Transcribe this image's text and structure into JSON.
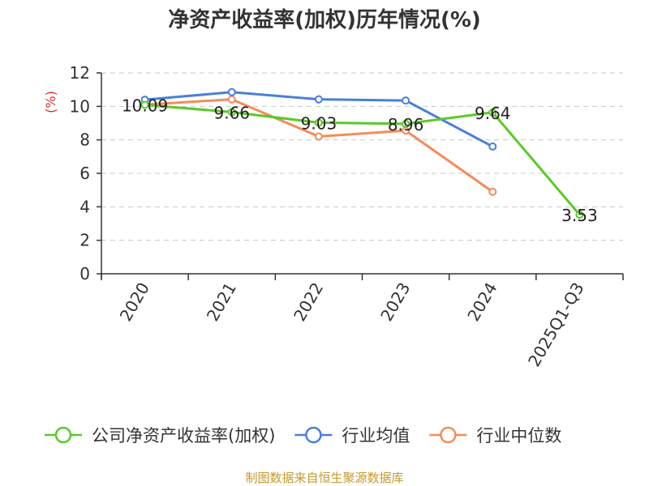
{
  "chart_data": {
    "type": "line",
    "title": "净资产收益率(加权)历年情况(%)",
    "ylabel": "(%)",
    "xlabel": "",
    "ylim": [
      0,
      12
    ],
    "yticks": [
      0,
      2,
      4,
      6,
      8,
      10,
      12
    ],
    "grid": true,
    "legend_position": "bottom",
    "categories": [
      "2020",
      "2021",
      "2022",
      "2023",
      "2024",
      "2025Q1-Q3"
    ],
    "series": [
      {
        "name": "公司净资产收益率(加权)",
        "color": "#5cc82a",
        "values": [
          10.09,
          9.66,
          9.03,
          8.96,
          9.64,
          3.53
        ],
        "labels": [
          "10.09",
          "9.66",
          "9.03",
          "8.96",
          "9.64",
          "3.53"
        ]
      },
      {
        "name": "行业均值",
        "color": "#4a7fd9",
        "values": [
          10.4,
          10.85,
          10.42,
          10.35,
          7.6,
          null
        ],
        "labels": []
      },
      {
        "name": "行业中位数",
        "color": "#f58b5a",
        "values": [
          10.1,
          10.42,
          8.2,
          8.55,
          4.9,
          null
        ],
        "labels": []
      }
    ]
  },
  "footer": {
    "source": "制图数据来自恒生聚源数据库",
    "source_color": "#c39a2e"
  },
  "colors": {
    "axis": "#333333",
    "grid": "#c8c8c8",
    "ylabel": "#d9302c"
  }
}
